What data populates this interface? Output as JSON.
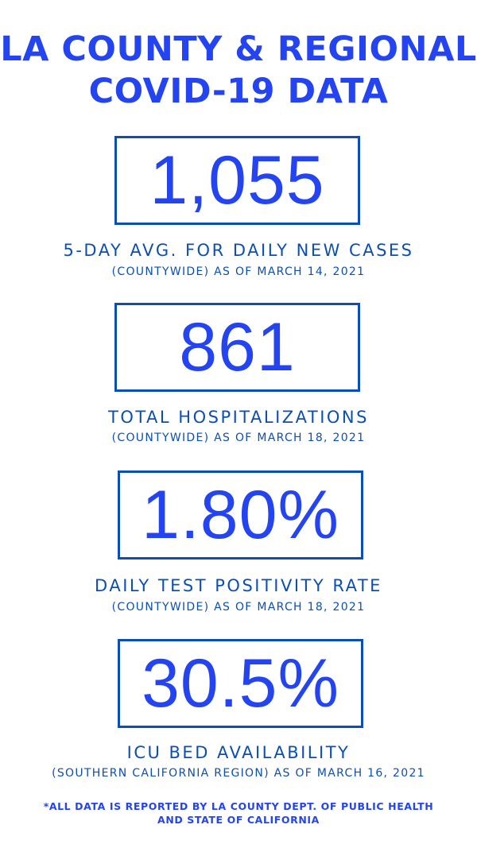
{
  "colors": {
    "accent": "#2344f0",
    "label": "#0b4fb4",
    "background": "#ffffff"
  },
  "title": {
    "line1": "LA COUNTY & REGIONAL",
    "line2": "COVID-19 DATA"
  },
  "stats": [
    {
      "value": "1,055",
      "label": "5-DAY AVG. FOR DAILY NEW CASES",
      "sub": "(COUNTYWIDE) AS OF MARCH 14, 2021"
    },
    {
      "value": "861",
      "label": "TOTAL HOSPITALIZATIONS",
      "sub": "(COUNTYWIDE) AS OF MARCH 18, 2021"
    },
    {
      "value": "1.80%",
      "label": "DAILY TEST POSITIVITY RATE",
      "sub": "(COUNTYWIDE) AS OF MARCH 18, 2021"
    },
    {
      "value": "30.5%",
      "label": "ICU BED AVAILABILITY",
      "sub": "(SOUTHERN CALIFORNIA REGION) AS OF MARCH 16, 2021"
    }
  ],
  "footer": {
    "line1": "*ALL DATA IS REPORTED BY LA COUNTY DEPT. OF PUBLIC HEALTH",
    "line2": "AND STATE OF CALIFORNIA"
  }
}
